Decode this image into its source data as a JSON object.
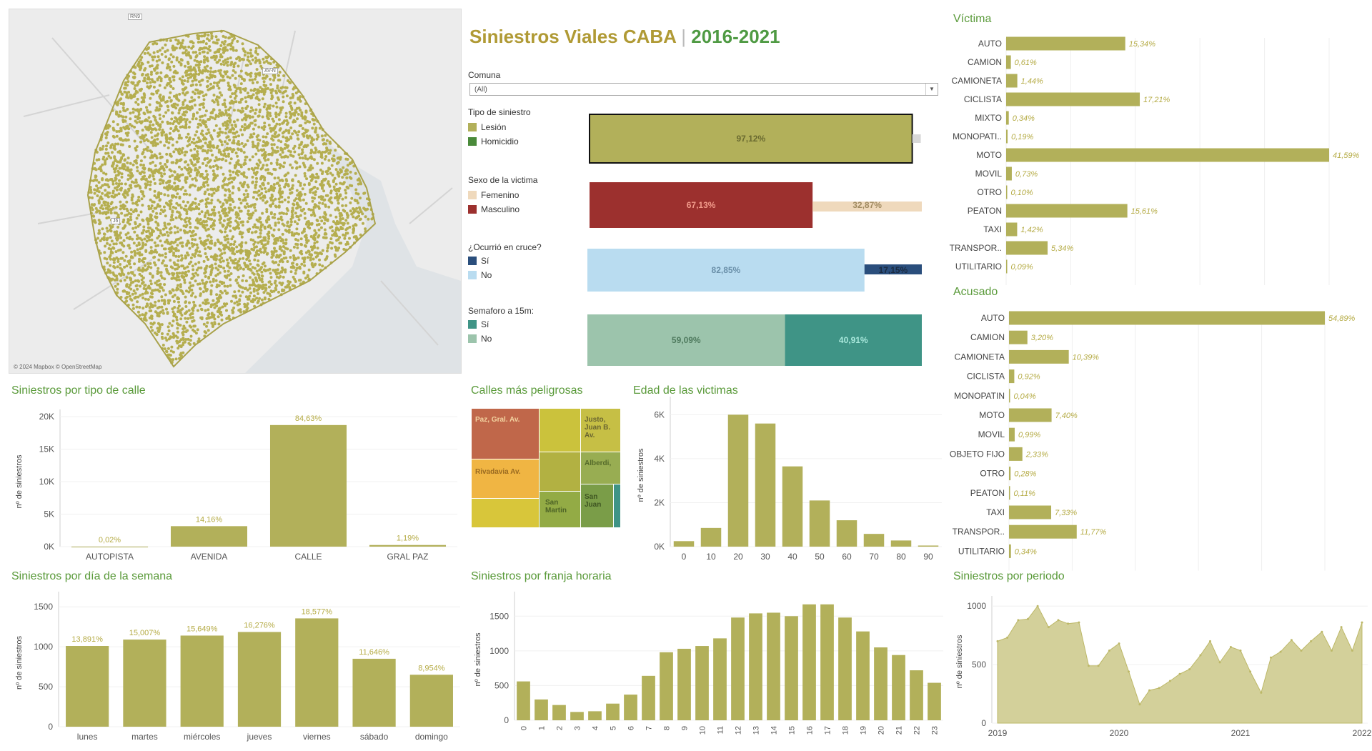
{
  "header": {
    "title_a": "Siniestros Viales CABA",
    "separator": "|",
    "title_b": "2016-2021"
  },
  "map": {
    "credit": "© 2024 Mapbox © OpenStreetMap",
    "road_labels": [
      "RN9",
      "AV-N",
      "J6"
    ]
  },
  "colors": {
    "olive": "#b2b05a",
    "green": "#4a8a3a",
    "red": "#9c302e",
    "peach": "#efd9bc",
    "lightblue": "#b9dcf0",
    "navy": "#2a4e7c",
    "teal": "#3f9486",
    "sage": "#9cc4ac"
  },
  "filters": {
    "comuna_label": "Comuna",
    "comuna_value": "(All)"
  },
  "split_bars": [
    {
      "legend_title": "Tipo de siniestro",
      "items": [
        "Lesión",
        "Homicidio"
      ],
      "values": [
        97.12,
        2.88
      ],
      "labels": [
        "97,12%",
        ""
      ]
    },
    {
      "legend_title": "Sexo de la victima",
      "items": [
        "Femenino",
        "Masculino"
      ],
      "values": [
        67.13,
        32.87
      ],
      "labels": [
        "67,13%",
        "32,87%"
      ]
    },
    {
      "legend_title": "¿Ocurrió en cruce?",
      "items": [
        "Sí",
        "No"
      ],
      "values": [
        82.85,
        17.15
      ],
      "labels": [
        "82,85%",
        "17,15%"
      ]
    },
    {
      "legend_title": "Semaforo a 15m:",
      "items": [
        "Sí",
        "No"
      ],
      "values": [
        59.09,
        40.91
      ],
      "labels": [
        "59,09%",
        "40,91%"
      ]
    }
  ],
  "titles": {
    "victima": "Víctima",
    "acusado": "Acusado",
    "tipo_calle": "Siniestros por tipo de calle",
    "calles": "Calles más peligrosas",
    "edad": "Edad de las victimas",
    "dia": "Siniestros por día de la semana",
    "franja": "Siniestros por franja horaria",
    "periodo": "Siniestros por periodo"
  },
  "axis_ylabel": "nº de siniestros",
  "treemap": {
    "labels": [
      "Paz, Gral. Av.",
      "Justo, Juan B. Av.",
      "Alberdi,",
      "Rivadavia Av.",
      "San Martin",
      "San Juan"
    ]
  },
  "chart_data": [
    {
      "id": "victima",
      "type": "bar",
      "orientation": "horizontal",
      "categories": [
        "AUTO",
        "CAMION",
        "CAMIONETA",
        "CICLISTA",
        "MIXTO",
        "MONOPATI..",
        "MOTO",
        "MOVIL",
        "OTRO",
        "PEATON",
        "TAXI",
        "TRANSPOR..",
        "UTILITARIO"
      ],
      "values": [
        15.34,
        0.61,
        1.44,
        17.21,
        0.34,
        0.19,
        41.59,
        0.73,
        0.1,
        15.61,
        1.42,
        5.34,
        0.09
      ],
      "labels": [
        "15,34%",
        "0,61%",
        "1,44%",
        "17,21%",
        "0,34%",
        "0,19%",
        "41,59%",
        "0,73%",
        "0,10%",
        "15,61%",
        "1,42%",
        "5,34%",
        "0,09%"
      ]
    },
    {
      "id": "acusado",
      "type": "bar",
      "orientation": "horizontal",
      "categories": [
        "AUTO",
        "CAMION",
        "CAMIONETA",
        "CICLISTA",
        "MONOPATIN",
        "MOTO",
        "MOVIL",
        "OBJETO FIJO",
        "OTRO",
        "PEATON",
        "TAXI",
        "TRANSPOR..",
        "UTILITARIO"
      ],
      "values": [
        54.89,
        3.2,
        10.39,
        0.92,
        0.04,
        7.4,
        0.99,
        2.33,
        0.28,
        0.11,
        7.33,
        11.77,
        0.34
      ],
      "labels": [
        "54,89%",
        "3,20%",
        "10,39%",
        "0,92%",
        "0,04%",
        "7,40%",
        "0,99%",
        "2,33%",
        "0,28%",
        "0,11%",
        "7,33%",
        "11,77%",
        "0,34%"
      ]
    },
    {
      "id": "tipo_calle",
      "type": "bar",
      "title": "Siniestros por tipo de calle",
      "categories": [
        "AUTOPISTA",
        "AVENIDA",
        "CALLE",
        "GRAL PAZ"
      ],
      "values": [
        5,
        3150,
        18700,
        250
      ],
      "labels": [
        "0,02%",
        "14,16%",
        "84,63%",
        "1,19%"
      ],
      "ylabel": "nº de siniestros",
      "ylim": [
        0,
        20000
      ],
      "yticks": [
        0,
        5000,
        10000,
        15000,
        20000
      ],
      "yticklabels": [
        "0K",
        "5K",
        "10K",
        "15K",
        "20K"
      ]
    },
    {
      "id": "edad",
      "type": "bar",
      "title": "Edad de las victimas",
      "categories": [
        "0",
        "10",
        "20",
        "30",
        "40",
        "50",
        "60",
        "70",
        "80",
        "90"
      ],
      "values": [
        250,
        850,
        6000,
        5600,
        3650,
        2100,
        1200,
        580,
        280,
        50
      ],
      "ylabel": "nº de siniestros",
      "ylim": [
        0,
        6500
      ],
      "yticks": [
        0,
        2000,
        4000,
        6000
      ],
      "yticklabels": [
        "0K",
        "2K",
        "4K",
        "6K"
      ]
    },
    {
      "id": "dia",
      "type": "bar",
      "title": "Siniestros por día de la semana",
      "categories": [
        "lunes",
        "martes",
        "miércoles",
        "jueves",
        "viernes",
        "sábado",
        "domingo"
      ],
      "values": [
        1010,
        1090,
        1140,
        1185,
        1355,
        850,
        650
      ],
      "labels": [
        "13,891%",
        "15,007%",
        "15,649%",
        "16,276%",
        "18,577%",
        "11,646%",
        "8,954%"
      ],
      "ylabel": "nº de siniestros",
      "ylim": [
        0,
        1600
      ],
      "yticks": [
        0,
        500,
        1000,
        1500
      ]
    },
    {
      "id": "franja",
      "type": "bar",
      "title": "Siniestros por franja horaria",
      "categories": [
        "0",
        "1",
        "2",
        "3",
        "4",
        "5",
        "6",
        "7",
        "8",
        "9",
        "10",
        "11",
        "12",
        "13",
        "14",
        "15",
        "16",
        "17",
        "18",
        "19",
        "20",
        "21",
        "22",
        "23"
      ],
      "values": [
        560,
        300,
        220,
        120,
        130,
        240,
        370,
        640,
        980,
        1030,
        1070,
        1180,
        1480,
        1540,
        1550,
        1500,
        1670,
        1670,
        1480,
        1280,
        1050,
        940,
        720,
        540
      ],
      "ylabel": "nº de siniestros",
      "ylim": [
        0,
        1750
      ],
      "yticks": [
        0,
        500,
        1000,
        1500
      ]
    },
    {
      "id": "periodo",
      "type": "area",
      "title": "Siniestros por periodo",
      "x": [
        2019.0,
        2019.08,
        2019.17,
        2019.25,
        2019.33,
        2019.42,
        2019.5,
        2019.58,
        2019.67,
        2019.75,
        2019.83,
        2019.92,
        2020.0,
        2020.08,
        2020.17,
        2020.25,
        2020.33,
        2020.42,
        2020.5,
        2020.58,
        2020.67,
        2020.75,
        2020.83,
        2020.92,
        2021.0,
        2021.08,
        2021.17,
        2021.25,
        2021.33,
        2021.42,
        2021.5,
        2021.58,
        2021.67,
        2021.75,
        2021.83,
        2021.92,
        2022.0
      ],
      "y": [
        700,
        730,
        880,
        890,
        1000,
        820,
        880,
        850,
        860,
        490,
        490,
        620,
        680,
        440,
        160,
        280,
        300,
        360,
        420,
        460,
        580,
        700,
        520,
        650,
        620,
        440,
        260,
        560,
        610,
        710,
        620,
        700,
        780,
        620,
        820,
        620,
        860
      ],
      "xticks": [
        2019,
        2020,
        2021,
        2022
      ],
      "xticklabels": [
        "2019",
        "2020",
        "2021",
        "2022"
      ],
      "ylabel": "nº de siniestros",
      "ylim": [
        0,
        1050
      ],
      "yticks": [
        0,
        500,
        1000
      ]
    }
  ]
}
